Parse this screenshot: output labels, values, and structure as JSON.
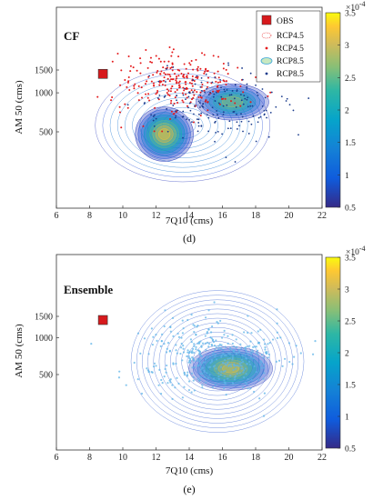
{
  "chart_data": [
    {
      "type": "scatter",
      "panel_label": "(d)",
      "title": "CF",
      "xlabel": "7Q10 (cms)",
      "ylabel": "AM 50 (cms)",
      "xlim": [
        6,
        22
      ],
      "xticks": [
        6,
        8,
        10,
        12,
        14,
        16,
        18,
        20,
        22
      ],
      "yticks": [
        500,
        1000,
        1500
      ],
      "y_scale": "log",
      "legend": {
        "placement": "top-right",
        "entries": [
          "OBS",
          "RCP4.5",
          "RCP4.5",
          "RCP8.5",
          "RCP8.5"
        ]
      },
      "colorbar": {
        "range": [
          5e-05,
          0.00035
        ],
        "ticks": [
          "0.5",
          "1",
          "1.5",
          "2",
          "2.5",
          "3",
          "3.5"
        ],
        "exponent_label": "×10",
        "exponent_power": "-4"
      },
      "obs_point": {
        "x": 8.8,
        "y": 1400
      },
      "density_peaks": [
        {
          "x": 12.5,
          "y": 500,
          "peak": 0.00035
        },
        {
          "x": 16.5,
          "y": 850,
          "peak": 0.00022
        }
      ],
      "series_colors": {
        "obs": "#d7191c",
        "rcp45": "#e41a1c",
        "rcp85": "#1a3b8c"
      }
    },
    {
      "type": "scatter",
      "panel_label": "(e)",
      "title": "Ensemble",
      "xlabel": "7Q10 (cms)",
      "ylabel": "AM 50 (cms)",
      "xlim": [
        6,
        22
      ],
      "xticks": [
        6,
        8,
        10,
        12,
        14,
        16,
        18,
        20,
        22
      ],
      "yticks": [
        500,
        1000,
        1500
      ],
      "y_scale": "log",
      "colorbar": {
        "range": [
          5e-05,
          0.00035
        ],
        "ticks": [
          "0.5",
          "1",
          "1.5",
          "2",
          "2.5",
          "3",
          "3.5"
        ],
        "exponent_label": "×10",
        "exponent_power": "-4"
      },
      "obs_point": {
        "x": 8.8,
        "y": 1400
      },
      "density_peaks": [
        {
          "x": 16.5,
          "y": 560,
          "peak": 0.00032
        }
      ],
      "series_colors": {
        "obs": "#d7191c",
        "points": "#5fb4e8"
      }
    }
  ]
}
